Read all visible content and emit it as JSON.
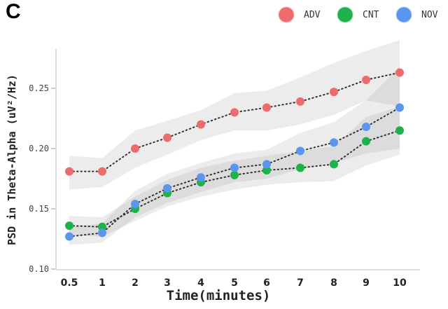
{
  "panel_label": "C",
  "chart_data": {
    "type": "line",
    "categories": [
      "0.5",
      "1",
      "2",
      "3",
      "4",
      "5",
      "6",
      "7",
      "8",
      "9",
      "10"
    ],
    "xlabel": "Time(minutes)",
    "ylabel": "PSD in Theta-Alpha (uV²/Hz)",
    "ylim": [
      0.1,
      0.29
    ],
    "yticks": [
      "0.10",
      "0.15",
      "0.20",
      "0.25"
    ],
    "legend_position": "top-right",
    "series": [
      {
        "name": "ADV",
        "color": "#ee6b6b",
        "values": [
          0.181,
          0.181,
          0.2,
          0.209,
          0.22,
          0.23,
          0.234,
          0.239,
          0.247,
          0.257,
          0.263
        ],
        "lower": [
          0.166,
          0.168,
          0.184,
          0.195,
          0.207,
          0.215,
          0.215,
          0.22,
          0.228,
          0.24,
          0.235
        ],
        "upper": [
          0.194,
          0.192,
          0.215,
          0.223,
          0.232,
          0.246,
          0.248,
          0.259,
          0.271,
          0.281,
          0.29
        ]
      },
      {
        "name": "CNT",
        "color": "#1db34a",
        "values": [
          0.136,
          0.135,
          0.15,
          0.163,
          0.172,
          0.178,
          0.182,
          0.184,
          0.187,
          0.206,
          0.215
        ],
        "lower": [
          0.128,
          0.127,
          0.14,
          0.152,
          0.16,
          0.166,
          0.17,
          0.172,
          0.173,
          0.186,
          0.195
        ],
        "upper": [
          0.144,
          0.143,
          0.16,
          0.174,
          0.184,
          0.19,
          0.194,
          0.198,
          0.202,
          0.226,
          0.235
        ]
      },
      {
        "name": "NOV",
        "color": "#5b95ee",
        "values": [
          0.127,
          0.13,
          0.154,
          0.167,
          0.176,
          0.184,
          0.187,
          0.198,
          0.205,
          0.218,
          0.234
        ],
        "lower": [
          0.12,
          0.122,
          0.143,
          0.155,
          0.164,
          0.172,
          0.175,
          0.183,
          0.188,
          0.196,
          0.2
        ],
        "upper": [
          0.135,
          0.138,
          0.165,
          0.179,
          0.188,
          0.196,
          0.199,
          0.213,
          0.222,
          0.24,
          0.268
        ]
      }
    ]
  }
}
